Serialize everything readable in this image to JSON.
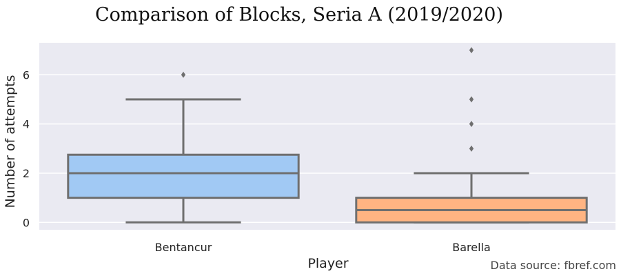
{
  "chart_data": {
    "type": "box",
    "title": "Comparison of Blocks, Seria A (2019/2020)",
    "xlabel": "Player",
    "ylabel": "Number of attempts",
    "ylim": [
      -0.3,
      7.3
    ],
    "yticks": [
      "0",
      "2",
      "4",
      "6"
    ],
    "grid": true,
    "categories": [
      "Bentancur",
      "Barella"
    ],
    "boxes": [
      {
        "name": "Bentancur",
        "color": "#a1c9f4",
        "whisker_low": 0,
        "q1": 1,
        "median": 2,
        "q3": 2.75,
        "whisker_high": 5,
        "outliers": [
          6
        ]
      },
      {
        "name": "Barella",
        "color": "#ffb482",
        "whisker_low": 0,
        "q1": 0,
        "median": 0.5,
        "q3": 1,
        "whisker_high": 2,
        "outliers": [
          3,
          4,
          5,
          7
        ]
      }
    ],
    "annotation": "Data source: fbref.com"
  }
}
